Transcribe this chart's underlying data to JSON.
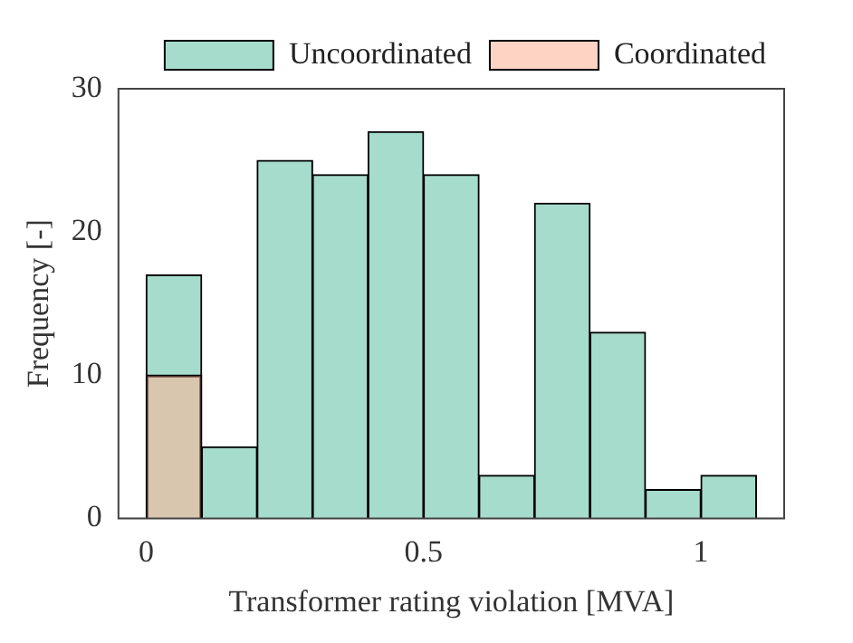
{
  "chart_data": {
    "type": "histogram",
    "xlabel": "Transformer rating violation [MVA]",
    "ylabel": "Frequency [-]",
    "bins": [
      0,
      0.1,
      0.2,
      0.3,
      0.4,
      0.5,
      0.6,
      0.7,
      0.8,
      0.9,
      1.0,
      1.1
    ],
    "series": [
      {
        "name": "Uncoordinated",
        "color": "#a6dccb",
        "values": [
          17,
          5,
          25,
          24,
          27,
          24,
          3,
          22,
          13,
          2,
          3
        ]
      },
      {
        "name": "Coordinated",
        "color": "#fcb79d",
        "values": [
          10,
          0,
          0,
          0,
          0,
          0,
          0,
          0,
          0,
          0,
          0
        ]
      }
    ],
    "xlim": [
      -0.05,
      1.15
    ],
    "xticks": [
      0,
      0.5,
      1
    ],
    "ylim": [
      0,
      30
    ],
    "yticks": [
      0,
      10,
      20,
      30
    ],
    "grid": false,
    "legend": "top right"
  }
}
